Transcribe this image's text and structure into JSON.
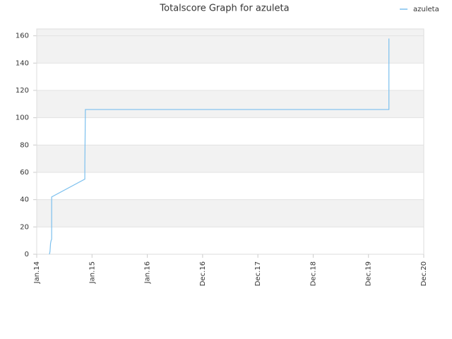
{
  "chart_data": {
    "type": "line",
    "title": "Totalscore Graph for azuleta",
    "x": [
      0.23,
      0.24,
      0.25,
      0.26,
      0.27,
      0.27,
      0.87,
      0.87,
      0.88,
      6.37,
      6.37
    ],
    "series": [
      {
        "name": "azuleta",
        "color": "#7cc0ee",
        "values": [
          0,
          2,
          8,
          10,
          11,
          42,
          55,
          65,
          106,
          106,
          158
        ]
      }
    ],
    "xlim": [
      0,
      7
    ],
    "xticks": [
      {
        "value": 0,
        "label": "Jan.14"
      },
      {
        "value": 1,
        "label": "Jan.15"
      },
      {
        "value": 2,
        "label": "Jan.16"
      },
      {
        "value": 3,
        "label": "Dec.16"
      },
      {
        "value": 4,
        "label": "Dec.17"
      },
      {
        "value": 5,
        "label": "Dec.18"
      },
      {
        "value": 6,
        "label": "Dec.19"
      },
      {
        "value": 7,
        "label": "Dec.20"
      }
    ],
    "ylim": [
      0,
      165
    ],
    "yticks": [
      0,
      20,
      40,
      60,
      80,
      100,
      120,
      140,
      160
    ],
    "grid": true,
    "legend": "top-right"
  }
}
